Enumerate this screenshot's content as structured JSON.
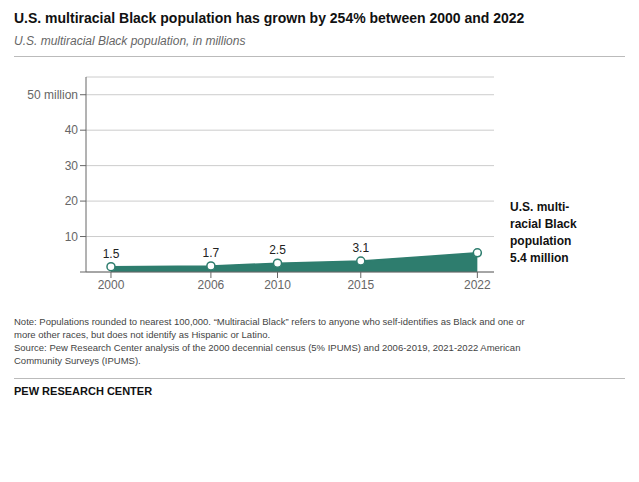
{
  "chart_data": {
    "type": "area",
    "title": "U.S. multiracial Black population has grown by 254% between 2000 and 2022",
    "subtitle": "U.S. multiracial Black population, in millions",
    "x": [
      2000,
      2006,
      2010,
      2015,
      2022
    ],
    "values": [
      1.5,
      1.7,
      2.5,
      3.1,
      5.4
    ],
    "value_labels": [
      "1.5",
      "1.7",
      "2.5",
      "3.1",
      null
    ],
    "data_labels": true,
    "color": "#2e7d6e",
    "marker": "circle",
    "ylim": [
      0,
      55
    ],
    "yticks": [
      {
        "value": 0,
        "label": ""
      },
      10,
      20,
      30,
      40,
      {
        "value": 50,
        "label": "50 million"
      }
    ],
    "xlim": [
      1998.5,
      2023
    ],
    "xticks": [
      2000,
      2006,
      2010,
      2015,
      2022
    ],
    "grid": true,
    "annotation": "U.S. multi-\nracial Black\npopulation\n5.4 million",
    "note": "Note: Populations rounded to nearest 100,000. “Multiracial Black” refers to anyone who self-identifies as Black and one or\nmore other races, but does not identify as Hispanic or Latino.\nSource: Pew Research Center analysis of the 2000 decennial census (5% IPUMS) and 2006-2019, 2021-2022 American\nCommunity Surveys (IPUMS).",
    "footer": "PEW RESEARCH CENTER"
  }
}
